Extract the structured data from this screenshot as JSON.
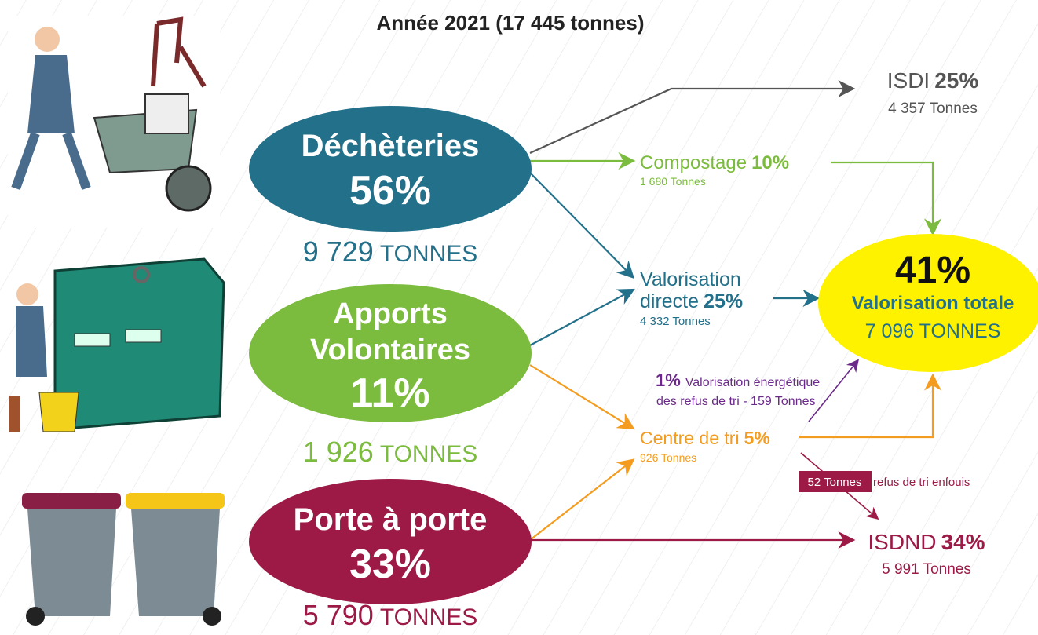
{
  "title": "Année 2021 (17 445 tonnes)",
  "sources": [
    {
      "name_lines": [
        "Déchèteries"
      ],
      "percent": "56%",
      "tonnes": "9 729",
      "unit": "TONNES"
    },
    {
      "name_lines": [
        "Apports",
        "Volontaires"
      ],
      "percent": "11%",
      "tonnes": "1 926",
      "unit": "TONNES"
    },
    {
      "name_lines": [
        "Porte à porte"
      ],
      "percent": "33%",
      "tonnes": "5 790",
      "unit": "TONNES"
    }
  ],
  "destinations": {
    "isdi": {
      "name": "ISDI",
      "percent": "25%",
      "tonnes": "4 357 Tonnes"
    },
    "compostage": {
      "name": "Compostage",
      "percent": "10%",
      "tonnes": "1 680 Tonnes"
    },
    "valorisation_directe": {
      "name_lines": [
        "Valorisation",
        "directe"
      ],
      "percent": "25%",
      "tonnes": "4 332 Tonnes"
    },
    "centre_de_tri": {
      "name": "Centre de tri",
      "percent": "5%",
      "tonnes": "926 Tonnes"
    },
    "isdnd": {
      "name": "ISDND",
      "percent": "34%",
      "tonnes": "5 991 Tonnes"
    }
  },
  "total": {
    "percent": "41%",
    "label": "Valorisation totale",
    "tonnes": "7 096 TONNES"
  },
  "energy": {
    "percent": "1%",
    "line1": "Valorisation énergétique",
    "line2": "des refus de tri - 159 Tonnes"
  },
  "landfill_refus": {
    "tonnes": "52 Tonnes",
    "label": "refus de tri enfouis"
  }
}
